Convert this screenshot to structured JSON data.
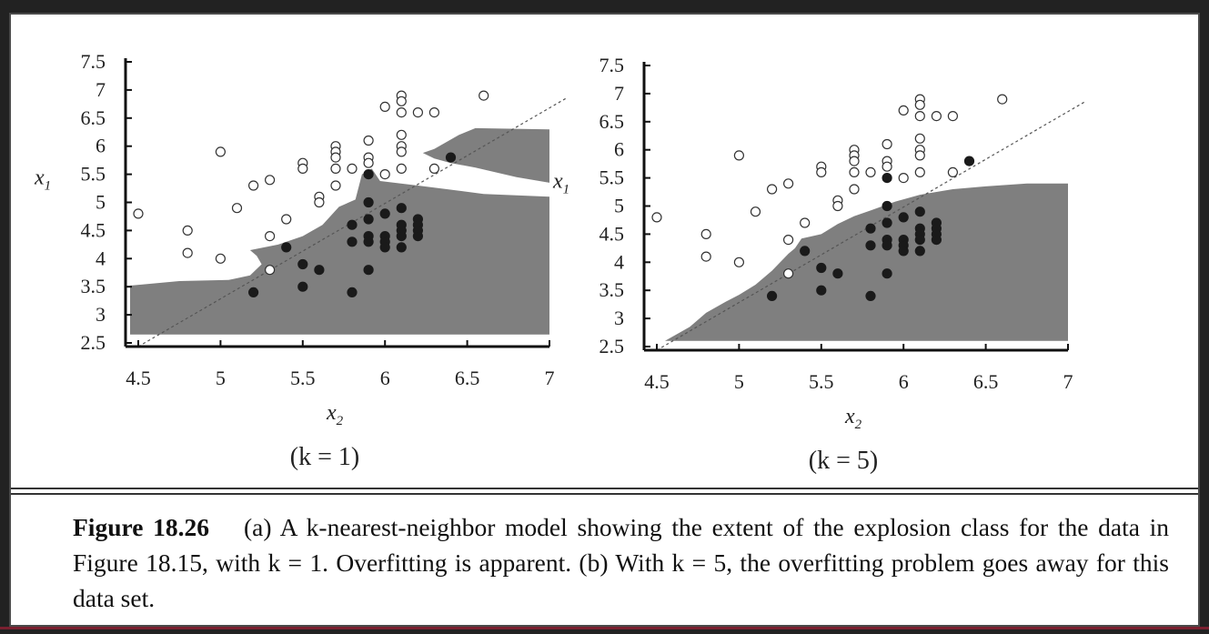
{
  "caption": {
    "title": "Figure 18.26",
    "text": "(a) A k-nearest-neighbor model showing the extent of the explosion class for the data in Figure 18.15, with k = 1. Overfitting is apparent. (b) With k = 5, the overfitting problem goes away for this data set."
  },
  "colors": {
    "region": "#7f7f7f",
    "point_filled": "#1a1a1a",
    "point_open_stroke": "#333333",
    "page_frame": "#222222",
    "accent_line": "#7a2030"
  },
  "chart_data": [
    {
      "type": "scatter",
      "panel_label": "(k = 1)",
      "xlabel": "x2",
      "ylabel": "x1",
      "xlim": [
        4.5,
        7
      ],
      "ylim": [
        2.5,
        7.5
      ],
      "x_ticks": [
        "4.5",
        "5",
        "5.5",
        "6",
        "6.5",
        "7"
      ],
      "y_ticks": [
        "2.5",
        "3",
        "3.5",
        "4",
        "4.5",
        "5",
        "5.5",
        "6",
        "6.5",
        "7",
        "7.5"
      ],
      "grid": false,
      "legend": "none",
      "decision_boundary": "dotted diagonal line",
      "shaded_region": "explosion class (k = 1)",
      "series": [
        {
          "marker": "open-circle",
          "points": [
            [
              4.5,
              4.8
            ],
            [
              4.8,
              4.5
            ],
            [
              4.8,
              4.1
            ],
            [
              5.0,
              5.9
            ],
            [
              5.0,
              4.0
            ],
            [
              5.1,
              4.9
            ],
            [
              5.2,
              5.3
            ],
            [
              5.3,
              5.4
            ],
            [
              5.3,
              4.4
            ],
            [
              5.3,
              3.8
            ],
            [
              5.4,
              4.7
            ],
            [
              5.5,
              5.7
            ],
            [
              5.5,
              5.6
            ],
            [
              5.6,
              5.1
            ],
            [
              5.6,
              5.0
            ],
            [
              5.7,
              6.0
            ],
            [
              5.7,
              5.9
            ],
            [
              5.7,
              5.8
            ],
            [
              5.7,
              5.6
            ],
            [
              5.7,
              5.3
            ],
            [
              5.8,
              5.6
            ],
            [
              5.9,
              6.1
            ],
            [
              5.9,
              5.8
            ],
            [
              5.9,
              5.7
            ],
            [
              6.0,
              6.7
            ],
            [
              6.0,
              5.5
            ],
            [
              6.1,
              6.9
            ],
            [
              6.1,
              6.8
            ],
            [
              6.1,
              6.6
            ],
            [
              6.1,
              6.2
            ],
            [
              6.1,
              6.0
            ],
            [
              6.1,
              5.9
            ],
            [
              6.1,
              5.6
            ],
            [
              6.2,
              6.6
            ],
            [
              6.3,
              6.6
            ],
            [
              6.3,
              5.6
            ],
            [
              6.6,
              6.9
            ]
          ]
        },
        {
          "marker": "filled-circle",
          "points": [
            [
              5.2,
              3.4
            ],
            [
              5.4,
              4.2
            ],
            [
              5.5,
              3.9
            ],
            [
              5.5,
              3.5
            ],
            [
              5.6,
              3.8
            ],
            [
              5.8,
              4.6
            ],
            [
              5.8,
              4.3
            ],
            [
              5.8,
              3.4
            ],
            [
              5.9,
              5.5
            ],
            [
              5.9,
              5.0
            ],
            [
              5.9,
              4.7
            ],
            [
              5.9,
              4.4
            ],
            [
              5.9,
              4.3
            ],
            [
              5.9,
              3.8
            ],
            [
              6.0,
              4.8
            ],
            [
              6.0,
              4.4
            ],
            [
              6.0,
              4.3
            ],
            [
              6.0,
              4.2
            ],
            [
              6.1,
              4.9
            ],
            [
              6.1,
              4.6
            ],
            [
              6.1,
              4.5
            ],
            [
              6.1,
              4.4
            ],
            [
              6.1,
              4.2
            ],
            [
              6.2,
              4.7
            ],
            [
              6.2,
              4.6
            ],
            [
              6.2,
              4.5
            ],
            [
              6.2,
              4.4
            ],
            [
              6.4,
              5.8
            ]
          ]
        }
      ]
    },
    {
      "type": "scatter",
      "panel_label": "(k = 5)",
      "xlabel": "x2",
      "ylabel": "x1",
      "xlim": [
        4.5,
        7
      ],
      "ylim": [
        2.5,
        7.5
      ],
      "x_ticks": [
        "4.5",
        "5",
        "5.5",
        "6",
        "6.5",
        "7"
      ],
      "y_ticks": [
        "2.5",
        "3",
        "3.5",
        "4",
        "4.5",
        "5",
        "5.5",
        "6",
        "6.5",
        "7",
        "7.5"
      ],
      "grid": false,
      "legend": "none",
      "decision_boundary": "dotted diagonal line",
      "shaded_region": "explosion class (k = 5)",
      "series": [
        {
          "marker": "open-circle",
          "points": [
            [
              4.5,
              4.8
            ],
            [
              4.8,
              4.5
            ],
            [
              4.8,
              4.1
            ],
            [
              5.0,
              5.9
            ],
            [
              5.0,
              4.0
            ],
            [
              5.1,
              4.9
            ],
            [
              5.2,
              5.3
            ],
            [
              5.3,
              5.4
            ],
            [
              5.3,
              4.4
            ],
            [
              5.3,
              3.8
            ],
            [
              5.4,
              4.7
            ],
            [
              5.5,
              5.7
            ],
            [
              5.5,
              5.6
            ],
            [
              5.6,
              5.1
            ],
            [
              5.6,
              5.0
            ],
            [
              5.7,
              6.0
            ],
            [
              5.7,
              5.9
            ],
            [
              5.7,
              5.8
            ],
            [
              5.7,
              5.6
            ],
            [
              5.7,
              5.3
            ],
            [
              5.8,
              5.6
            ],
            [
              5.9,
              6.1
            ],
            [
              5.9,
              5.8
            ],
            [
              5.9,
              5.7
            ],
            [
              6.0,
              6.7
            ],
            [
              6.0,
              5.5
            ],
            [
              6.1,
              6.9
            ],
            [
              6.1,
              6.8
            ],
            [
              6.1,
              6.6
            ],
            [
              6.1,
              6.2
            ],
            [
              6.1,
              6.0
            ],
            [
              6.1,
              5.9
            ],
            [
              6.1,
              5.6
            ],
            [
              6.2,
              6.6
            ],
            [
              6.3,
              6.6
            ],
            [
              6.3,
              5.6
            ],
            [
              6.6,
              6.9
            ]
          ]
        },
        {
          "marker": "filled-circle",
          "points": [
            [
              5.2,
              3.4
            ],
            [
              5.4,
              4.2
            ],
            [
              5.5,
              3.9
            ],
            [
              5.5,
              3.5
            ],
            [
              5.6,
              3.8
            ],
            [
              5.8,
              4.6
            ],
            [
              5.8,
              4.3
            ],
            [
              5.8,
              3.4
            ],
            [
              5.9,
              5.5
            ],
            [
              5.9,
              5.0
            ],
            [
              5.9,
              4.7
            ],
            [
              5.9,
              4.4
            ],
            [
              5.9,
              4.3
            ],
            [
              5.9,
              3.8
            ],
            [
              6.0,
              4.8
            ],
            [
              6.0,
              4.4
            ],
            [
              6.0,
              4.3
            ],
            [
              6.0,
              4.2
            ],
            [
              6.1,
              4.9
            ],
            [
              6.1,
              4.6
            ],
            [
              6.1,
              4.5
            ],
            [
              6.1,
              4.4
            ],
            [
              6.1,
              4.2
            ],
            [
              6.2,
              4.7
            ],
            [
              6.2,
              4.6
            ],
            [
              6.2,
              4.5
            ],
            [
              6.2,
              4.4
            ],
            [
              6.4,
              5.8
            ]
          ]
        }
      ]
    }
  ]
}
